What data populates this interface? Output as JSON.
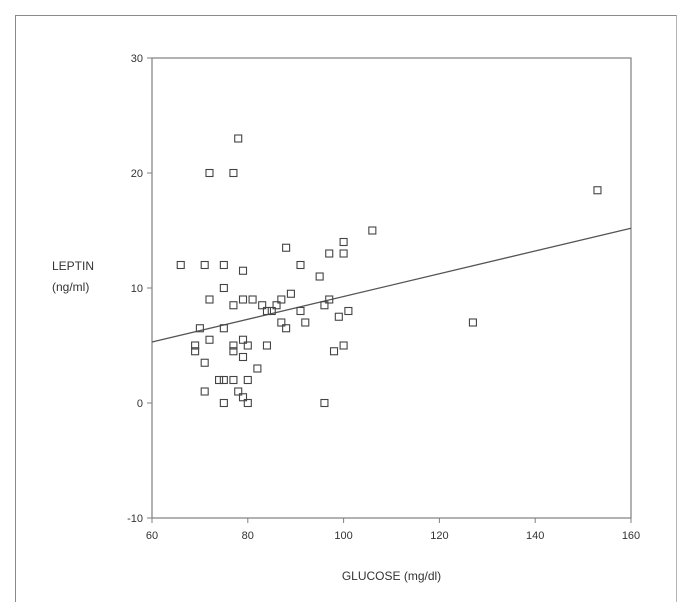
{
  "chart_data": {
    "type": "scatter",
    "title": "",
    "xlabel": "GLUCOSE (mg/dl)",
    "ylabel_lines": [
      "LEPTIN",
      "(ng/ml)"
    ],
    "xlim": [
      60,
      160
    ],
    "ylim": [
      -10,
      30
    ],
    "x_ticks": [
      60,
      80,
      100,
      120,
      140,
      160
    ],
    "y_ticks": [
      -10,
      0,
      10,
      20,
      30
    ],
    "grid": false,
    "legend": "none",
    "marker": "open-square",
    "colors": {
      "axis": "#7f7f7f",
      "points": "#444444",
      "fit_line": "#555555"
    },
    "points": [
      {
        "x": 78,
        "y": 23
      },
      {
        "x": 72,
        "y": 20
      },
      {
        "x": 77,
        "y": 20
      },
      {
        "x": 153,
        "y": 18.5
      },
      {
        "x": 106,
        "y": 15
      },
      {
        "x": 100,
        "y": 14
      },
      {
        "x": 100,
        "y": 13
      },
      {
        "x": 97,
        "y": 13
      },
      {
        "x": 88,
        "y": 13.5
      },
      {
        "x": 91,
        "y": 12
      },
      {
        "x": 95,
        "y": 11
      },
      {
        "x": 66,
        "y": 12
      },
      {
        "x": 71,
        "y": 12
      },
      {
        "x": 75,
        "y": 12
      },
      {
        "x": 79,
        "y": 11.5
      },
      {
        "x": 75,
        "y": 10
      },
      {
        "x": 72,
        "y": 9
      },
      {
        "x": 89,
        "y": 9.5
      },
      {
        "x": 87,
        "y": 9
      },
      {
        "x": 96,
        "y": 8.5
      },
      {
        "x": 97,
        "y": 9
      },
      {
        "x": 77,
        "y": 8.5
      },
      {
        "x": 79,
        "y": 9
      },
      {
        "x": 81,
        "y": 9
      },
      {
        "x": 83,
        "y": 8.5
      },
      {
        "x": 85,
        "y": 8
      },
      {
        "x": 86,
        "y": 8.5
      },
      {
        "x": 84,
        "y": 8
      },
      {
        "x": 91,
        "y": 8
      },
      {
        "x": 101,
        "y": 8
      },
      {
        "x": 99,
        "y": 7.5
      },
      {
        "x": 87,
        "y": 7
      },
      {
        "x": 92,
        "y": 7
      },
      {
        "x": 127,
        "y": 7
      },
      {
        "x": 75,
        "y": 6.5
      },
      {
        "x": 70,
        "y": 6.5
      },
      {
        "x": 88,
        "y": 6.5
      },
      {
        "x": 72,
        "y": 5.5
      },
      {
        "x": 79,
        "y": 5.5
      },
      {
        "x": 69,
        "y": 5
      },
      {
        "x": 77,
        "y": 5
      },
      {
        "x": 80,
        "y": 5
      },
      {
        "x": 84,
        "y": 5
      },
      {
        "x": 100,
        "y": 5
      },
      {
        "x": 98,
        "y": 4.5
      },
      {
        "x": 69,
        "y": 4.5
      },
      {
        "x": 77,
        "y": 4.5
      },
      {
        "x": 79,
        "y": 4
      },
      {
        "x": 71,
        "y": 3.5
      },
      {
        "x": 82,
        "y": 3
      },
      {
        "x": 74,
        "y": 2
      },
      {
        "x": 75,
        "y": 2
      },
      {
        "x": 77,
        "y": 2
      },
      {
        "x": 80,
        "y": 2
      },
      {
        "x": 71,
        "y": 1
      },
      {
        "x": 78,
        "y": 1
      },
      {
        "x": 79,
        "y": 0.5
      },
      {
        "x": 75,
        "y": 0
      },
      {
        "x": 80,
        "y": 0
      },
      {
        "x": 96,
        "y": 0
      }
    ],
    "fit_line": {
      "x": [
        60,
        160
      ],
      "y": [
        5.3,
        15.2
      ]
    }
  }
}
